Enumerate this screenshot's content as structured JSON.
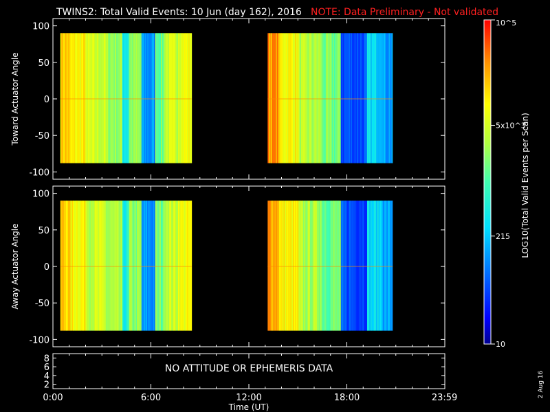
{
  "header": {
    "title": "TWINS2: Total Valid Events: 10 Jun (day 162), 2016",
    "note": "NOTE: Data Preliminary - Not validated",
    "note_color": "#ff2020"
  },
  "footer": {
    "xlabel": "Time (UT)",
    "date_stamp": "2 Aug 16",
    "x_ticks": [
      "0:00",
      "6:00",
      "12:00",
      "18:00",
      "23:59"
    ]
  },
  "chart_data": [
    {
      "type": "heatmap",
      "name": "toward",
      "ylabel": "Toward Actuator Angle",
      "ylim": [
        -110,
        110
      ],
      "yticks": [
        100,
        50,
        0,
        -50,
        -100
      ],
      "xlim_hours": [
        0,
        24
      ],
      "angle_coverage": [
        -88,
        90
      ],
      "segments": [
        {
          "start_hour": 0.45,
          "end_hour": 8.5
        },
        {
          "start_hour": 13.15,
          "end_hour": 20.8
        }
      ]
    },
    {
      "type": "heatmap",
      "name": "away",
      "ylabel": "Away Actuator Angle",
      "ylim": [
        -110,
        110
      ],
      "yticks": [
        100,
        50,
        0,
        -50,
        -100
      ],
      "xlim_hours": [
        0,
        24
      ],
      "angle_coverage": [
        -88,
        90
      ],
      "segments": [
        {
          "start_hour": 0.45,
          "end_hour": 8.5
        },
        {
          "start_hour": 13.15,
          "end_hour": 20.8
        }
      ]
    },
    {
      "type": "line",
      "name": "attitude",
      "yticks": [
        8,
        6,
        4,
        2
      ],
      "message": "NO ATTITUDE OR EPHEMERIS DATA"
    }
  ],
  "colorbar": {
    "label": "LOG10(Total Valid Events per Scan)",
    "scale": "log",
    "range": [
      10,
      100000
    ],
    "ticks": [
      {
        "value": 100000,
        "label": "10^5"
      },
      {
        "value": 5000,
        "label": "5x10^3"
      },
      {
        "value": 215,
        "label": "215"
      },
      {
        "value": 10,
        "label": "10"
      }
    ]
  }
}
